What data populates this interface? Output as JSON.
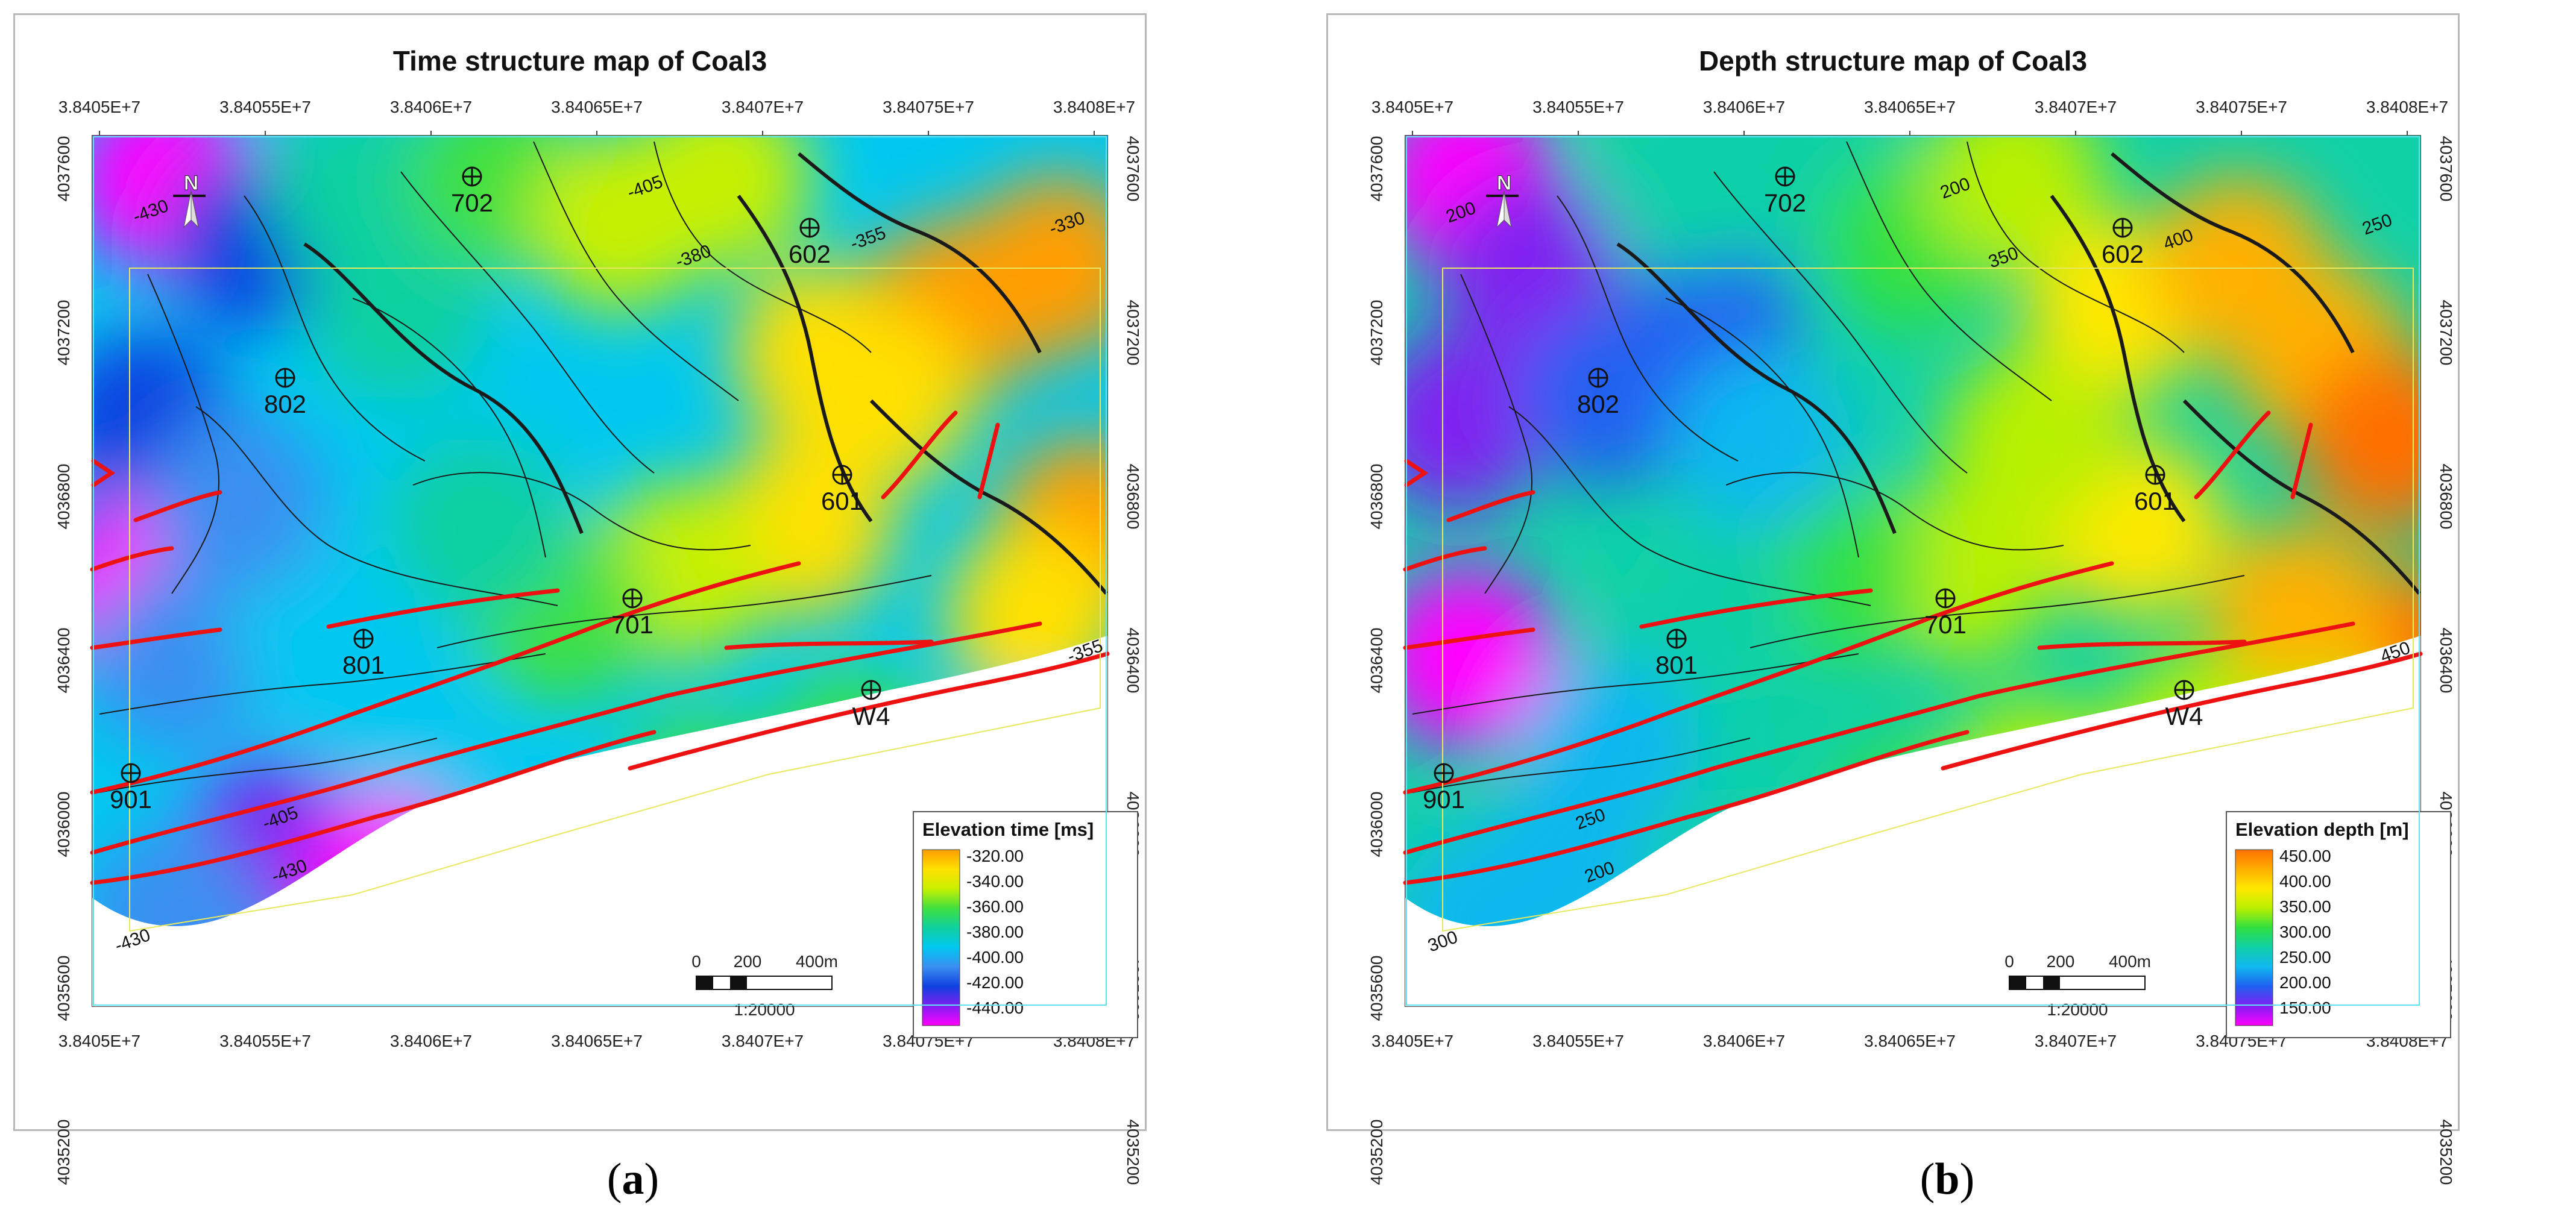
{
  "maps": [
    {
      "title": "Time structure map of Coal3",
      "legend_title": "Elevation time [ms]",
      "legend_labels": [
        "-320.00",
        "-340.00",
        "-360.00",
        "-380.00",
        "-400.00",
        "-420.00",
        "-440.00"
      ],
      "contour_labels": [
        "-405",
        "-380",
        "-355",
        "-330",
        "-430",
        "-430",
        "-405",
        "-430",
        "-355"
      ],
      "north": "N",
      "scale_labels": [
        "0",
        "200",
        "400m"
      ],
      "scale_ratio": "1:20000",
      "wells": [
        "702",
        "602",
        "802",
        "601",
        "701",
        "801",
        "W4",
        "901"
      ],
      "x_ticks": [
        "3.8405E+7",
        "3.84055E+7",
        "3.8406E+7",
        "3.84065E+7",
        "3.8407E+7",
        "3.84075E+7",
        "3.8408E+7"
      ],
      "y_ticks": [
        "4037600",
        "4037200",
        "4036800",
        "4036400",
        "4036000",
        "4035600",
        "4035200"
      ],
      "caption_letter": "a",
      "colors": [
        "#ff9d00",
        "#ffe000",
        "#c8f000",
        "#40e040",
        "#10d0a0",
        "#00c8f0",
        "#3a8ff0",
        "#1040e0",
        "#8020f0",
        "#ff00ff"
      ]
    },
    {
      "title": "Depth structure map of Coal3",
      "legend_title": "Elevation depth [m]",
      "legend_labels": [
        "450.00",
        "400.00",
        "350.00",
        "300.00",
        "250.00",
        "200.00",
        "150.00"
      ],
      "contour_labels": [
        "200",
        "350",
        "400",
        "250",
        "200",
        "300",
        "250",
        "200",
        "450"
      ],
      "north": "N",
      "scale_labels": [
        "0",
        "200",
        "400m"
      ],
      "scale_ratio": "1:20000",
      "wells": [
        "702",
        "602",
        "802",
        "601",
        "701",
        "801",
        "W4",
        "901"
      ],
      "x_ticks": [
        "3.8405E+7",
        "3.84055E+7",
        "3.8406E+7",
        "3.84065E+7",
        "3.8407E+7",
        "3.84075E+7",
        "3.8408E+7"
      ],
      "y_ticks": [
        "4037600",
        "4037200",
        "4036800",
        "4036400",
        "4036000",
        "4035600",
        "4035200"
      ],
      "caption_letter": "b",
      "colors": [
        "#ff7000",
        "#ffb000",
        "#ffe800",
        "#b8f000",
        "#30e040",
        "#10d0a8",
        "#10b8f0",
        "#2060f0",
        "#8020f0",
        "#ff00ff"
      ]
    }
  ]
}
